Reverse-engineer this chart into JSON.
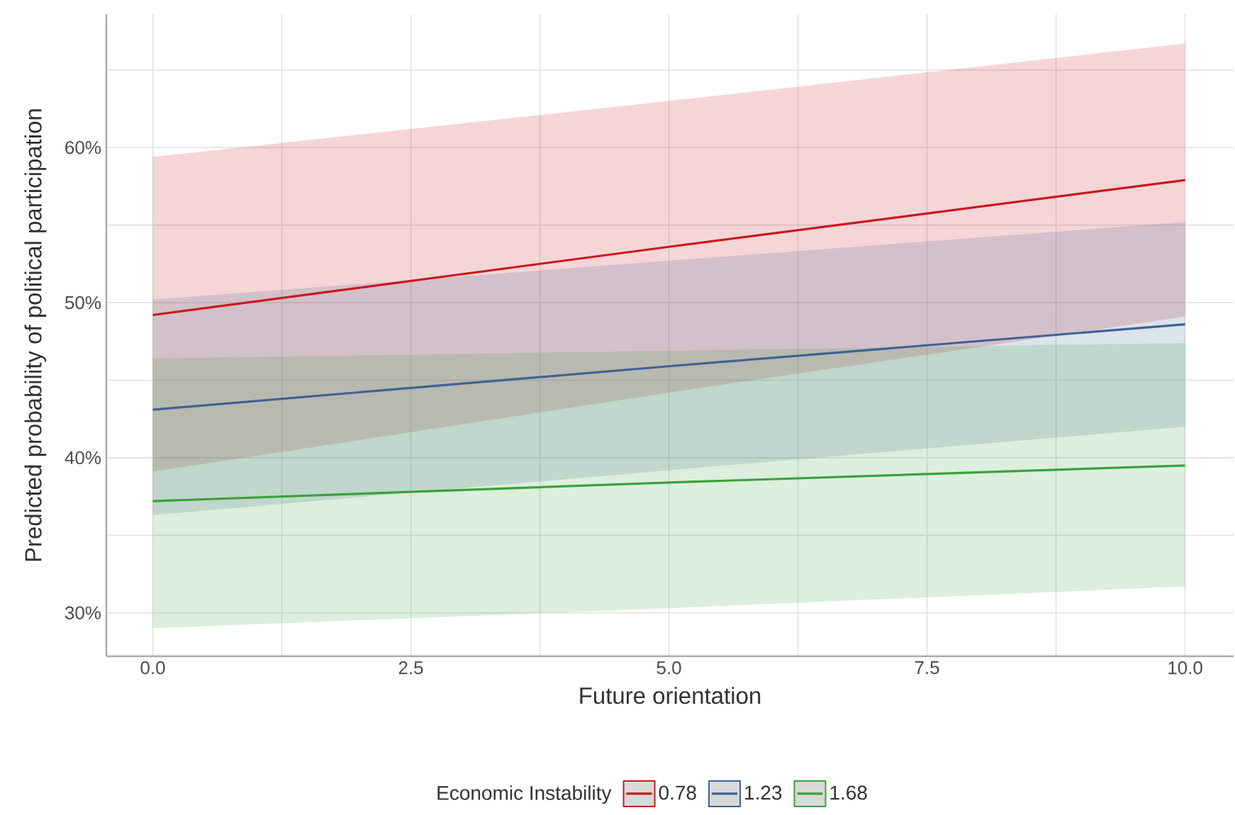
{
  "chart_data": {
    "type": "line",
    "xlabel": "Future orientation",
    "ylabel": "Predicted probability of political participation",
    "legend_title": "Economic Instability",
    "legend": "bottom",
    "grid": true,
    "marker": "none",
    "line_style": "solid",
    "x": [
      0,
      5,
      10
    ],
    "xlim": [
      -0.45,
      10.47
    ],
    "ylim": [
      27.2,
      68.6
    ],
    "xticks": [
      {
        "value": 0,
        "label": "0.0"
      },
      {
        "value": 1.25,
        "label": null
      },
      {
        "value": 2.5,
        "label": "2.5"
      },
      {
        "value": 3.75,
        "label": null
      },
      {
        "value": 5,
        "label": "5.0"
      },
      {
        "value": 6.25,
        "label": null
      },
      {
        "value": 7.5,
        "label": "7.5"
      },
      {
        "value": 8.75,
        "label": null
      },
      {
        "value": 10,
        "label": "10.0"
      }
    ],
    "yticks": [
      {
        "value": 30,
        "label": "30%"
      },
      {
        "value": 35,
        "label": null
      },
      {
        "value": 40,
        "label": "40%"
      },
      {
        "value": 45,
        "label": null
      },
      {
        "value": 50,
        "label": "50%"
      },
      {
        "value": 55,
        "label": null
      },
      {
        "value": 60,
        "label": "60%"
      },
      {
        "value": 65,
        "label": null
      }
    ],
    "series": [
      {
        "name": "0.78",
        "color": "#cb181d",
        "values": [
          49.2,
          53.6,
          57.9
        ],
        "lower": [
          39.1,
          44.2,
          49.1
        ],
        "upper": [
          59.4,
          63.0,
          66.7
        ]
      },
      {
        "name": "1.23",
        "color": "#3e6296",
        "values": [
          43.1,
          45.9,
          48.6
        ],
        "lower": [
          36.3,
          39.2,
          42.0
        ],
        "upper": [
          50.2,
          52.7,
          55.2
        ]
      },
      {
        "name": "1.68",
        "color": "#3ca03c",
        "values": [
          37.2,
          38.4,
          39.5
        ],
        "lower": [
          29.0,
          30.3,
          31.7
        ],
        "upper": [
          46.4,
          46.9,
          47.4
        ]
      }
    ]
  }
}
